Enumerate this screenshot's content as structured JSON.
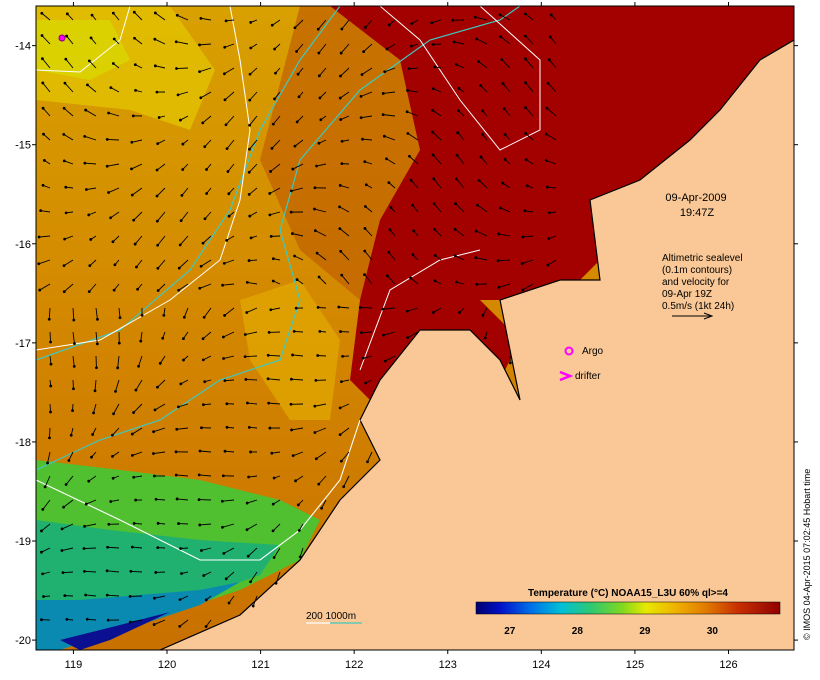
{
  "map": {
    "date_label": "09-Apr-2009",
    "time_label": "19:47Z",
    "legend_lines": [
      "Altimetric sealevel",
      "(0.1m contours)",
      "and velocity for",
      "09-Apr 19Z",
      "0.5m/s (1kt 24h)"
    ],
    "argo_label": "Argo",
    "drifter_label": "drifter",
    "bathy_label": "200  1000m",
    "colorbar_title": "Temperature (°C) NOAA15_L3U 60% ql>=4",
    "colorbar_ticks": [
      "27",
      "28",
      "29",
      "30"
    ],
    "credit": "© IMOS 04-Apr-2015 07:02:45 Hobart time",
    "x_ticks": [
      "119",
      "120",
      "121",
      "122",
      "123",
      "124",
      "125",
      "126"
    ],
    "y_ticks": [
      "-14",
      "-15",
      "-16",
      "-17",
      "-18",
      "-19",
      "-20"
    ],
    "colors": {
      "land": "#f9c896",
      "sst_hot": "#a30000",
      "sst_mid": "#d27800",
      "sst_warm": "#e8a000",
      "sst_yellow": "#e0d400",
      "sst_green": "#3cc040",
      "sst_teal": "#10a898",
      "sst_blue": "#0a1090",
      "bathy_200": "#ffffff",
      "bathy_1000": "#40c8c0",
      "marker": "#ff00ff"
    }
  },
  "chart_data": {
    "type": "heatmap",
    "title": "Temperature (°C) NOAA15_L3U 60% ql>=4",
    "xlabel": "",
    "ylabel": "",
    "xlim": [
      118.6,
      126.7
    ],
    "ylim": [
      -20.1,
      -13.6
    ],
    "x_ticks": [
      119,
      120,
      121,
      122,
      123,
      124,
      125,
      126
    ],
    "y_ticks": [
      -14,
      -15,
      -16,
      -17,
      -18,
      -19,
      -20
    ],
    "colorbar": {
      "range": [
        26.5,
        31.0
      ],
      "ticks": [
        27,
        28,
        29,
        30
      ]
    },
    "argo_floats": [
      {
        "lon": 118.9,
        "lat": -13.85
      }
    ]
  }
}
